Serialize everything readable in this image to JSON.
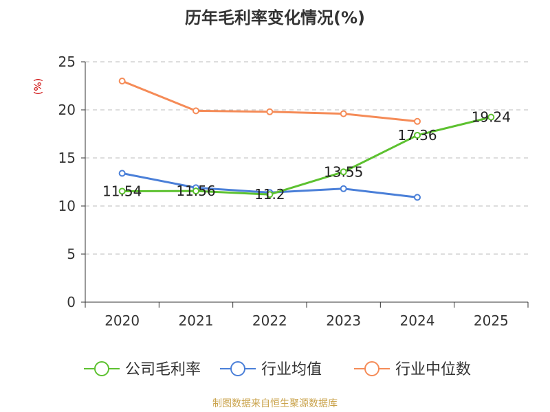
{
  "chart_data": {
    "type": "line",
    "title": "历年毛利率变化情况(%)",
    "ylabel": "(%)",
    "xlabel": "",
    "categories": [
      "2020",
      "2021",
      "2022",
      "2023",
      "2024",
      "2025"
    ],
    "ylim": [
      0,
      25
    ],
    "yticks": [
      0,
      5,
      10,
      15,
      20,
      25
    ],
    "grid": true,
    "legend_position": "bottom",
    "series": [
      {
        "name": "公司毛利率",
        "color": "#5cc12f",
        "show_labels": true,
        "values": [
          11.54,
          11.56,
          11.2,
          13.55,
          17.36,
          19.24
        ]
      },
      {
        "name": "行业均值",
        "color": "#4a7fd8",
        "show_labels": false,
        "values": [
          13.4,
          11.9,
          11.4,
          11.8,
          10.9,
          null
        ]
      },
      {
        "name": "行业中位数",
        "color": "#f58b57",
        "show_labels": false,
        "values": [
          23.0,
          19.9,
          19.8,
          19.6,
          18.8,
          null
        ]
      }
    ],
    "ylabel_color": "#cc0000"
  },
  "footer": {
    "source": "制图数据来自恒生聚源数据库"
  }
}
